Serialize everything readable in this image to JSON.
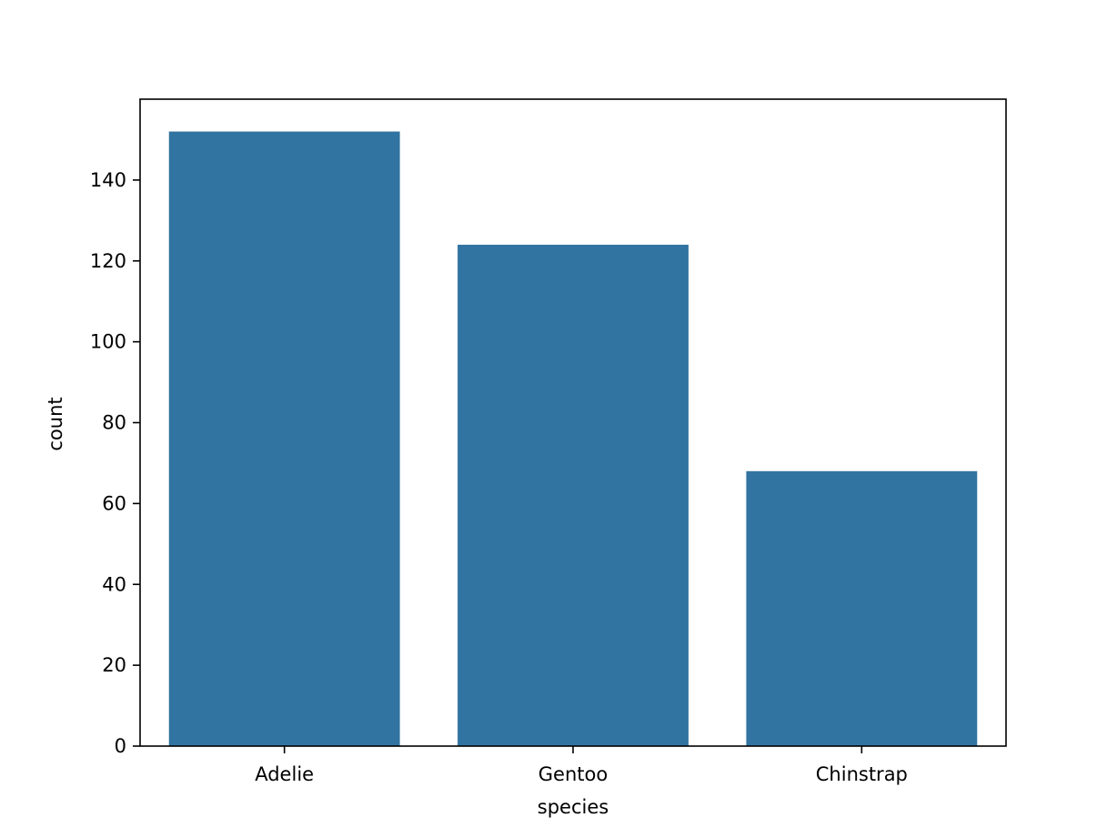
{
  "chart_data": {
    "type": "bar",
    "title": "",
    "xlabel": "species",
    "ylabel": "count",
    "categories": [
      "Adelie",
      "Gentoo",
      "Chinstrap"
    ],
    "values": [
      152,
      124,
      68
    ],
    "ylim": [
      0,
      160
    ],
    "yticks": [
      0,
      20,
      40,
      60,
      80,
      100,
      120,
      140
    ],
    "grid": false,
    "legend": "none",
    "colors": {
      "bar": "#3274a1",
      "axis": "#000000",
      "background": "#ffffff"
    }
  }
}
